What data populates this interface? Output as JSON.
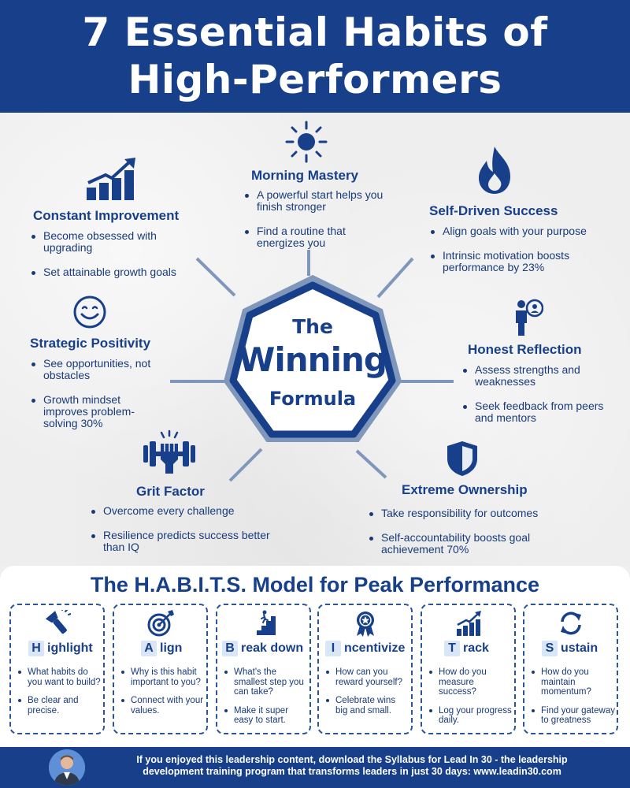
{
  "header": {
    "title_line1": "7 Essential Habits of",
    "title_line2": "High-Performers"
  },
  "center": {
    "the": "The",
    "winning": "Winning",
    "formula": "Formula"
  },
  "habits": {
    "morning": {
      "title": "Morning Mastery",
      "icon": "sun-icon",
      "bullets": [
        "A powerful start helps you finish stronger",
        "Find a routine that energizes you"
      ]
    },
    "improvement": {
      "title": "Constant Improvement",
      "icon": "growth-chart-icon",
      "bullets": [
        "Become obsessed with upgrading",
        "Set attainable growth goals"
      ]
    },
    "selfdriven": {
      "title": "Self-Driven Success",
      "icon": "flame-icon",
      "bullets": [
        "Align goals with your purpose",
        "Intrinsic motivation boosts performance by 23%"
      ]
    },
    "positivity": {
      "title": "Strategic Positivity",
      "icon": "smiley-icon",
      "bullets": [
        "See opportunities, not obstacles",
        "Growth mindset improves problem-solving 30%"
      ]
    },
    "reflection": {
      "title": "Honest Reflection",
      "icon": "person-mirror-icon",
      "bullets": [
        "Assess strengths and weaknesses",
        "Seek feedback from peers and mentors"
      ]
    },
    "grit": {
      "title": "Grit Factor",
      "icon": "dumbbell-fist-icon",
      "bullets": [
        "Overcome every challenge",
        "Resilience predicts success better than IQ"
      ]
    },
    "ownership": {
      "title": "Extreme Ownership",
      "icon": "shield-icon",
      "bullets": [
        "Take responsibility for outcomes",
        "Self-accountability boosts goal achievement 70%"
      ]
    }
  },
  "model": {
    "title": "The H.A.B.I.T.S. Model for Peak Performance",
    "cards": [
      {
        "letter": "H",
        "rest": "ighlight",
        "icon": "flashlight-icon",
        "bullets": [
          "What habits do you want to build?",
          "Be clear and precise."
        ]
      },
      {
        "letter": "A",
        "rest": "lign",
        "icon": "target-icon",
        "bullets": [
          "Why is this habit important to you?",
          "Connect with your values."
        ]
      },
      {
        "letter": "B",
        "rest": "reak down",
        "icon": "stairs-icon",
        "bullets": [
          "What's the smallest step you can take?",
          "Make it super easy to start."
        ]
      },
      {
        "letter": "I",
        "rest": "ncentivize",
        "icon": "award-ribbon-icon",
        "bullets": [
          "How can you reward yourself?",
          "Celebrate wins big and small."
        ]
      },
      {
        "letter": "T",
        "rest": "rack",
        "icon": "chart-up-icon",
        "bullets": [
          "How do you measure success?",
          "Log your progress daily."
        ]
      },
      {
        "letter": "S",
        "rest": "ustain",
        "icon": "refresh-icon",
        "bullets": [
          "How do you maintain momentum?",
          "Find your gateway to greatness"
        ]
      }
    ]
  },
  "footer": {
    "line1": "If you enjoyed this leadership content, download the Syllabus for Lead In 30 - the leadership",
    "line2": "development training program that transforms leaders in just 30 days: www.leadin30.com"
  },
  "colors": {
    "navy": "#173f8a",
    "text": "#183a7a",
    "light_blue": "#d8e6f7",
    "connector": "#7f97bb"
  }
}
